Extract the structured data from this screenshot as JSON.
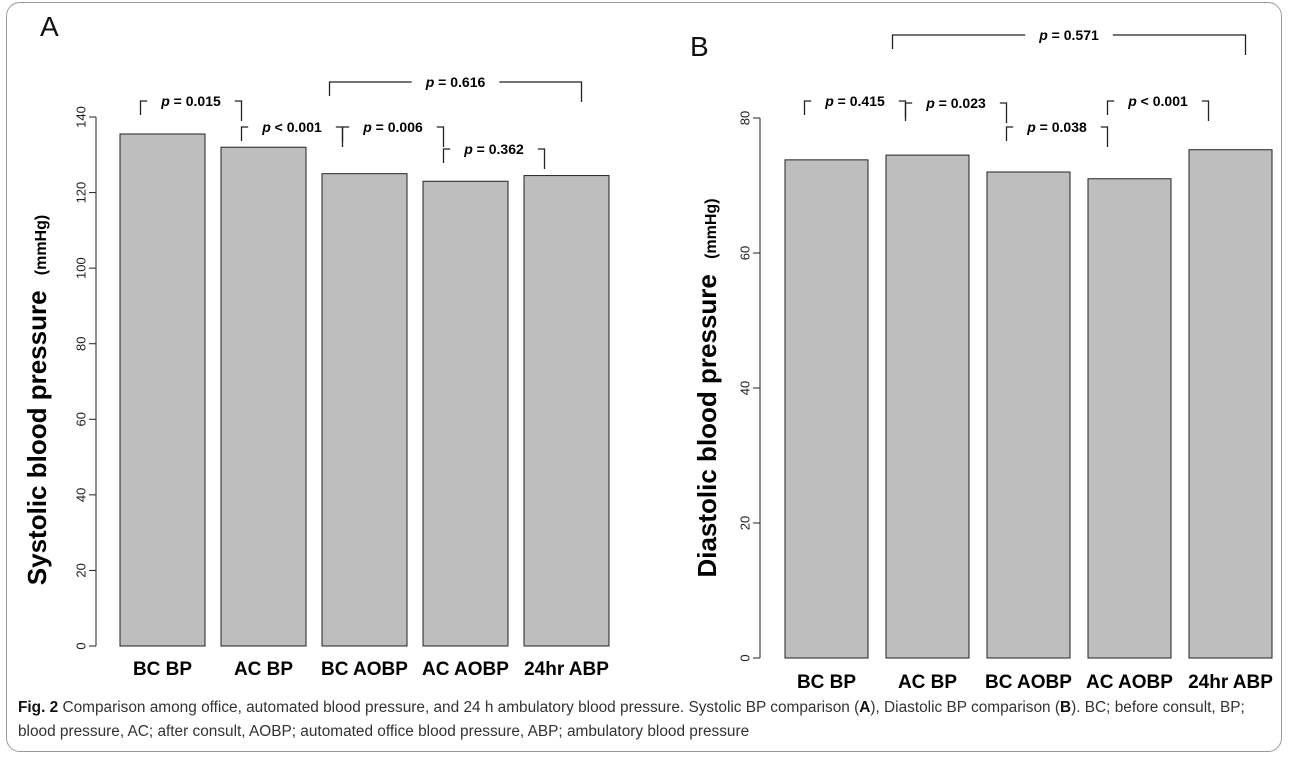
{
  "figure": {
    "panels": [
      {
        "letter": "A",
        "ylabel_main": "Systolic blood pressure",
        "ylabel_unit": "(mmHg)"
      },
      {
        "letter": "B",
        "ylabel_main": "Diastolic  blood pressure",
        "ylabel_unit": "(mmHg)"
      }
    ],
    "caption": {
      "label": "Fig. 2",
      "text_1": " Comparison among office, automated blood pressure, and 24 h ambulatory blood pressure. Systolic BP comparison (",
      "bold_1": "A",
      "text_2": "), Diastolic BP comparison (",
      "bold_2": "B",
      "text_3": "). BC; before consult, BP; blood pressure, AC; after consult, AOBP; automated office blood pressure, ABP; ambulatory blood pressure"
    }
  },
  "chart_data": [
    {
      "type": "bar",
      "panel": "A",
      "categories": [
        "BC BP",
        "AC BP",
        "BC AOBP",
        "AC AOBP",
        "24hr ABP"
      ],
      "values": [
        135.5,
        132,
        125,
        123,
        124.5
      ],
      "ylabel": "Systolic blood pressure (mmHg)",
      "ylim": [
        0,
        150
      ],
      "yticks": [
        0,
        20,
        40,
        60,
        80,
        100,
        120,
        140
      ],
      "comparisons": [
        {
          "from": 0,
          "to": 1,
          "label": "p = 0.015"
        },
        {
          "from": 1,
          "to": 2,
          "label": "p < 0.001"
        },
        {
          "from": 2,
          "to": 3,
          "label": "p = 0.006"
        },
        {
          "from": 3,
          "to": 4,
          "label": "p = 0.362"
        },
        {
          "from": 2,
          "to": 4,
          "label": "p = 0.616"
        }
      ]
    },
    {
      "type": "bar",
      "panel": "B",
      "categories": [
        "BC BP",
        "AC BP",
        "BC AOBP",
        "AC AOBP",
        "24hr ABP"
      ],
      "values": [
        73.8,
        74.5,
        72,
        71,
        75.3
      ],
      "ylabel": "Diastolic  blood pressure (mmHg)",
      "ylim": [
        0,
        80
      ],
      "yticks": [
        0,
        20,
        40,
        60,
        80
      ],
      "comparisons": [
        {
          "from": 0,
          "to": 1,
          "label": "p = 0.415"
        },
        {
          "from": 1,
          "to": 2,
          "label": "p = 0.023"
        },
        {
          "from": 2,
          "to": 3,
          "label": "p = 0.038"
        },
        {
          "from": 3,
          "to": 4,
          "label": "p < 0.001"
        },
        {
          "from": 1,
          "to": 4,
          "label": "p = 0.571"
        }
      ]
    }
  ]
}
